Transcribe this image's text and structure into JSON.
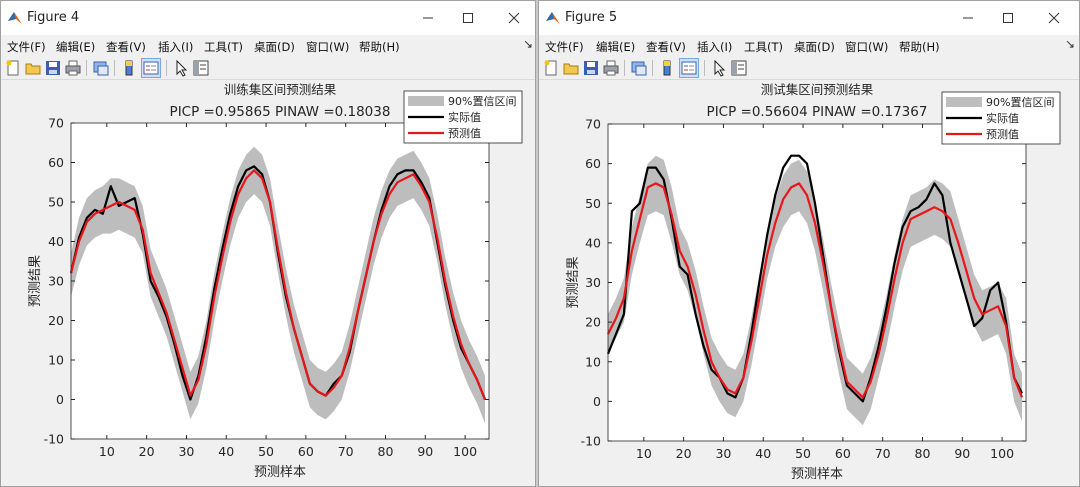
{
  "windows": [
    {
      "title": "Figure 4",
      "menu": [
        "文件(F)",
        "编辑(E)",
        "查看(V)",
        "插入(I)",
        "工具(T)",
        "桌面(D)",
        "窗口(W)",
        "帮助(H)"
      ],
      "chart_data": {
        "type": "line",
        "title": "训练集区间预测结果",
        "subtitle": "PICP =0.95865 PINAW =0.18038",
        "xlabel": "预测样本",
        "ylabel": "预测结果",
        "xlim": [
          1,
          106
        ],
        "ylim": [
          -10,
          70
        ],
        "xticks": [
          10,
          20,
          30,
          40,
          50,
          60,
          70,
          80,
          90,
          100
        ],
        "yticks": [
          -10,
          0,
          10,
          20,
          30,
          40,
          50,
          60,
          70
        ],
        "legend_position": "top-right",
        "legend": [
          "90%置信区间",
          "实际值",
          "预测值"
        ],
        "x": [
          1,
          3,
          5,
          7,
          9,
          11,
          13,
          15,
          17,
          19,
          21,
          23,
          25,
          27,
          29,
          31,
          33,
          35,
          37,
          39,
          41,
          43,
          45,
          47,
          49,
          51,
          53,
          55,
          57,
          59,
          61,
          63,
          65,
          67,
          69,
          71,
          73,
          75,
          77,
          79,
          81,
          83,
          85,
          87,
          89,
          91,
          93,
          95,
          97,
          99,
          101,
          103,
          105
        ],
        "series": [
          {
            "name": "实际值",
            "color": "#000000",
            "values": [
              32,
              41,
              46,
              48,
              47,
              54,
              49,
              50,
              51,
              42,
              30,
              26,
              21,
              14,
              6,
              0,
              6,
              16,
              28,
              38,
              47,
              54,
              58,
              59,
              57,
              50,
              37,
              26,
              18,
              11,
              4,
              2,
              1,
              4,
              6,
              12,
              22,
              31,
              40,
              48,
              54,
              57,
              58,
              58,
              55,
              51,
              40,
              29,
              20,
              13,
              9,
              5,
              0
            ]
          },
          {
            "name": "预测值",
            "color": "#e8161b",
            "values": [
              32,
              40,
              45,
              47,
              48,
              49,
              50,
              49,
              48,
              43,
              32,
              27,
              22,
              15,
              8,
              1,
              5,
              14,
              26,
              36,
              45,
              52,
              56,
              58,
              56,
              50,
              38,
              27,
              18,
              11,
              4,
              2,
              1,
              3,
              6,
              13,
              22,
              31,
              40,
              47,
              52,
              55,
              56,
              57,
              54,
              50,
              41,
              30,
              21,
              14,
              9,
              5,
              0
            ]
          },
          {
            "name": "90%置信区间",
            "type": "band",
            "color": "#bdbdbd",
            "lower": [
              26,
              34,
              39,
              41,
              42,
              42,
              43,
              42,
              41,
              37,
              26,
              21,
              16,
              9,
              2,
              -5,
              -1,
              8,
              20,
              30,
              39,
              46,
              50,
              52,
              50,
              44,
              32,
              21,
              12,
              5,
              -2,
              -4,
              -5,
              -3,
              0,
              7,
              16,
              25,
              34,
              41,
              46,
              49,
              50,
              51,
              48,
              44,
              35,
              24,
              15,
              8,
              3,
              -1,
              -6
            ],
            "upper": [
              37,
              46,
              51,
              53,
              54,
              56,
              56,
              55,
              54,
              49,
              38,
              33,
              28,
              21,
              14,
              7,
              11,
              20,
              32,
              42,
              51,
              58,
              62,
              64,
              62,
              56,
              44,
              33,
              24,
              17,
              10,
              8,
              7,
              9,
              12,
              19,
              28,
              37,
              46,
              53,
              58,
              61,
              62,
              63,
              60,
              56,
              47,
              36,
              27,
              20,
              15,
              11,
              6
            ]
          }
        ]
      }
    },
    {
      "title": "Figure 5",
      "menu": [
        "文件(F)",
        "编辑(E)",
        "查看(V)",
        "插入(I)",
        "工具(T)",
        "桌面(D)",
        "窗口(W)",
        "帮助(H)"
      ],
      "chart_data": {
        "type": "line",
        "title": "测试集区间预测结果",
        "subtitle": "PICP =0.56604 PINAW =0.17367",
        "xlabel": "预测样本",
        "ylabel": "预测结果",
        "xlim": [
          1,
          106
        ],
        "ylim": [
          -10,
          70
        ],
        "xticks": [
          10,
          20,
          30,
          40,
          50,
          60,
          70,
          80,
          90,
          100
        ],
        "yticks": [
          -10,
          0,
          10,
          20,
          30,
          40,
          50,
          60,
          70
        ],
        "legend_position": "top-right",
        "legend": [
          "90%置信区间",
          "实际值",
          "预测值"
        ],
        "x": [
          1,
          3,
          5,
          7,
          9,
          11,
          13,
          15,
          17,
          19,
          21,
          23,
          25,
          27,
          29,
          31,
          33,
          35,
          37,
          39,
          41,
          43,
          45,
          47,
          49,
          51,
          53,
          55,
          57,
          59,
          61,
          63,
          65,
          67,
          69,
          71,
          73,
          75,
          77,
          79,
          81,
          83,
          85,
          87,
          89,
          91,
          93,
          95,
          97,
          99,
          101,
          103,
          105
        ],
        "series": [
          {
            "name": "实际值",
            "color": "#000000",
            "values": [
              12,
              17,
              22,
              48,
              50,
              59,
              59,
              56,
              46,
              34,
              32,
              22,
              14,
              8,
              6,
              2,
              1,
              6,
              17,
              30,
              42,
              52,
              59,
              62,
              62,
              60,
              50,
              37,
              24,
              13,
              4,
              2,
              0,
              6,
              14,
              24,
              35,
              44,
              48,
              49,
              51,
              55,
              52,
              40,
              33,
              26,
              19,
              21,
              28,
              30,
              20,
              6,
              2
            ]
          },
          {
            "name": "预测值",
            "color": "#e8161b",
            "values": [
              17,
              21,
              26,
              38,
              46,
              54,
              55,
              54,
              47,
              38,
              34,
              27,
              18,
              10,
              6,
              3,
              2,
              6,
              15,
              26,
              37,
              45,
              51,
              54,
              55,
              52,
              45,
              35,
              24,
              14,
              5,
              3,
              1,
              5,
              12,
              21,
              31,
              40,
              46,
              47,
              48,
              49,
              48,
              46,
              40,
              33,
              26,
              22,
              23,
              24,
              19,
              6,
              1
            ]
          },
          {
            "name": "90%置信区间",
            "type": "band",
            "color": "#bdbdbd",
            "lower": [
              12,
              16,
              20,
              32,
              40,
              47,
              48,
              47,
              40,
              32,
              28,
              21,
              12,
              4,
              0,
              -3,
              -4,
              0,
              9,
              20,
              31,
              39,
              44,
              47,
              48,
              45,
              38,
              28,
              17,
              7,
              -2,
              -4,
              -6,
              -2,
              6,
              14,
              24,
              33,
              39,
              40,
              41,
              42,
              41,
              39,
              33,
              26,
              19,
              15,
              16,
              17,
              12,
              0,
              -5
            ],
            "upper": [
              22,
              26,
              31,
              44,
              52,
              60,
              62,
              61,
              54,
              44,
              40,
              33,
              24,
              16,
              12,
              9,
              8,
              12,
              21,
              32,
              43,
              51,
              57,
              60,
              61,
              58,
              51,
              41,
              30,
              20,
              11,
              9,
              7,
              11,
              18,
              27,
              37,
              46,
              52,
              53,
              54,
              56,
              55,
              53,
              46,
              39,
              32,
              28,
              29,
              30,
              26,
              12,
              7
            ]
          }
        ]
      }
    }
  ]
}
